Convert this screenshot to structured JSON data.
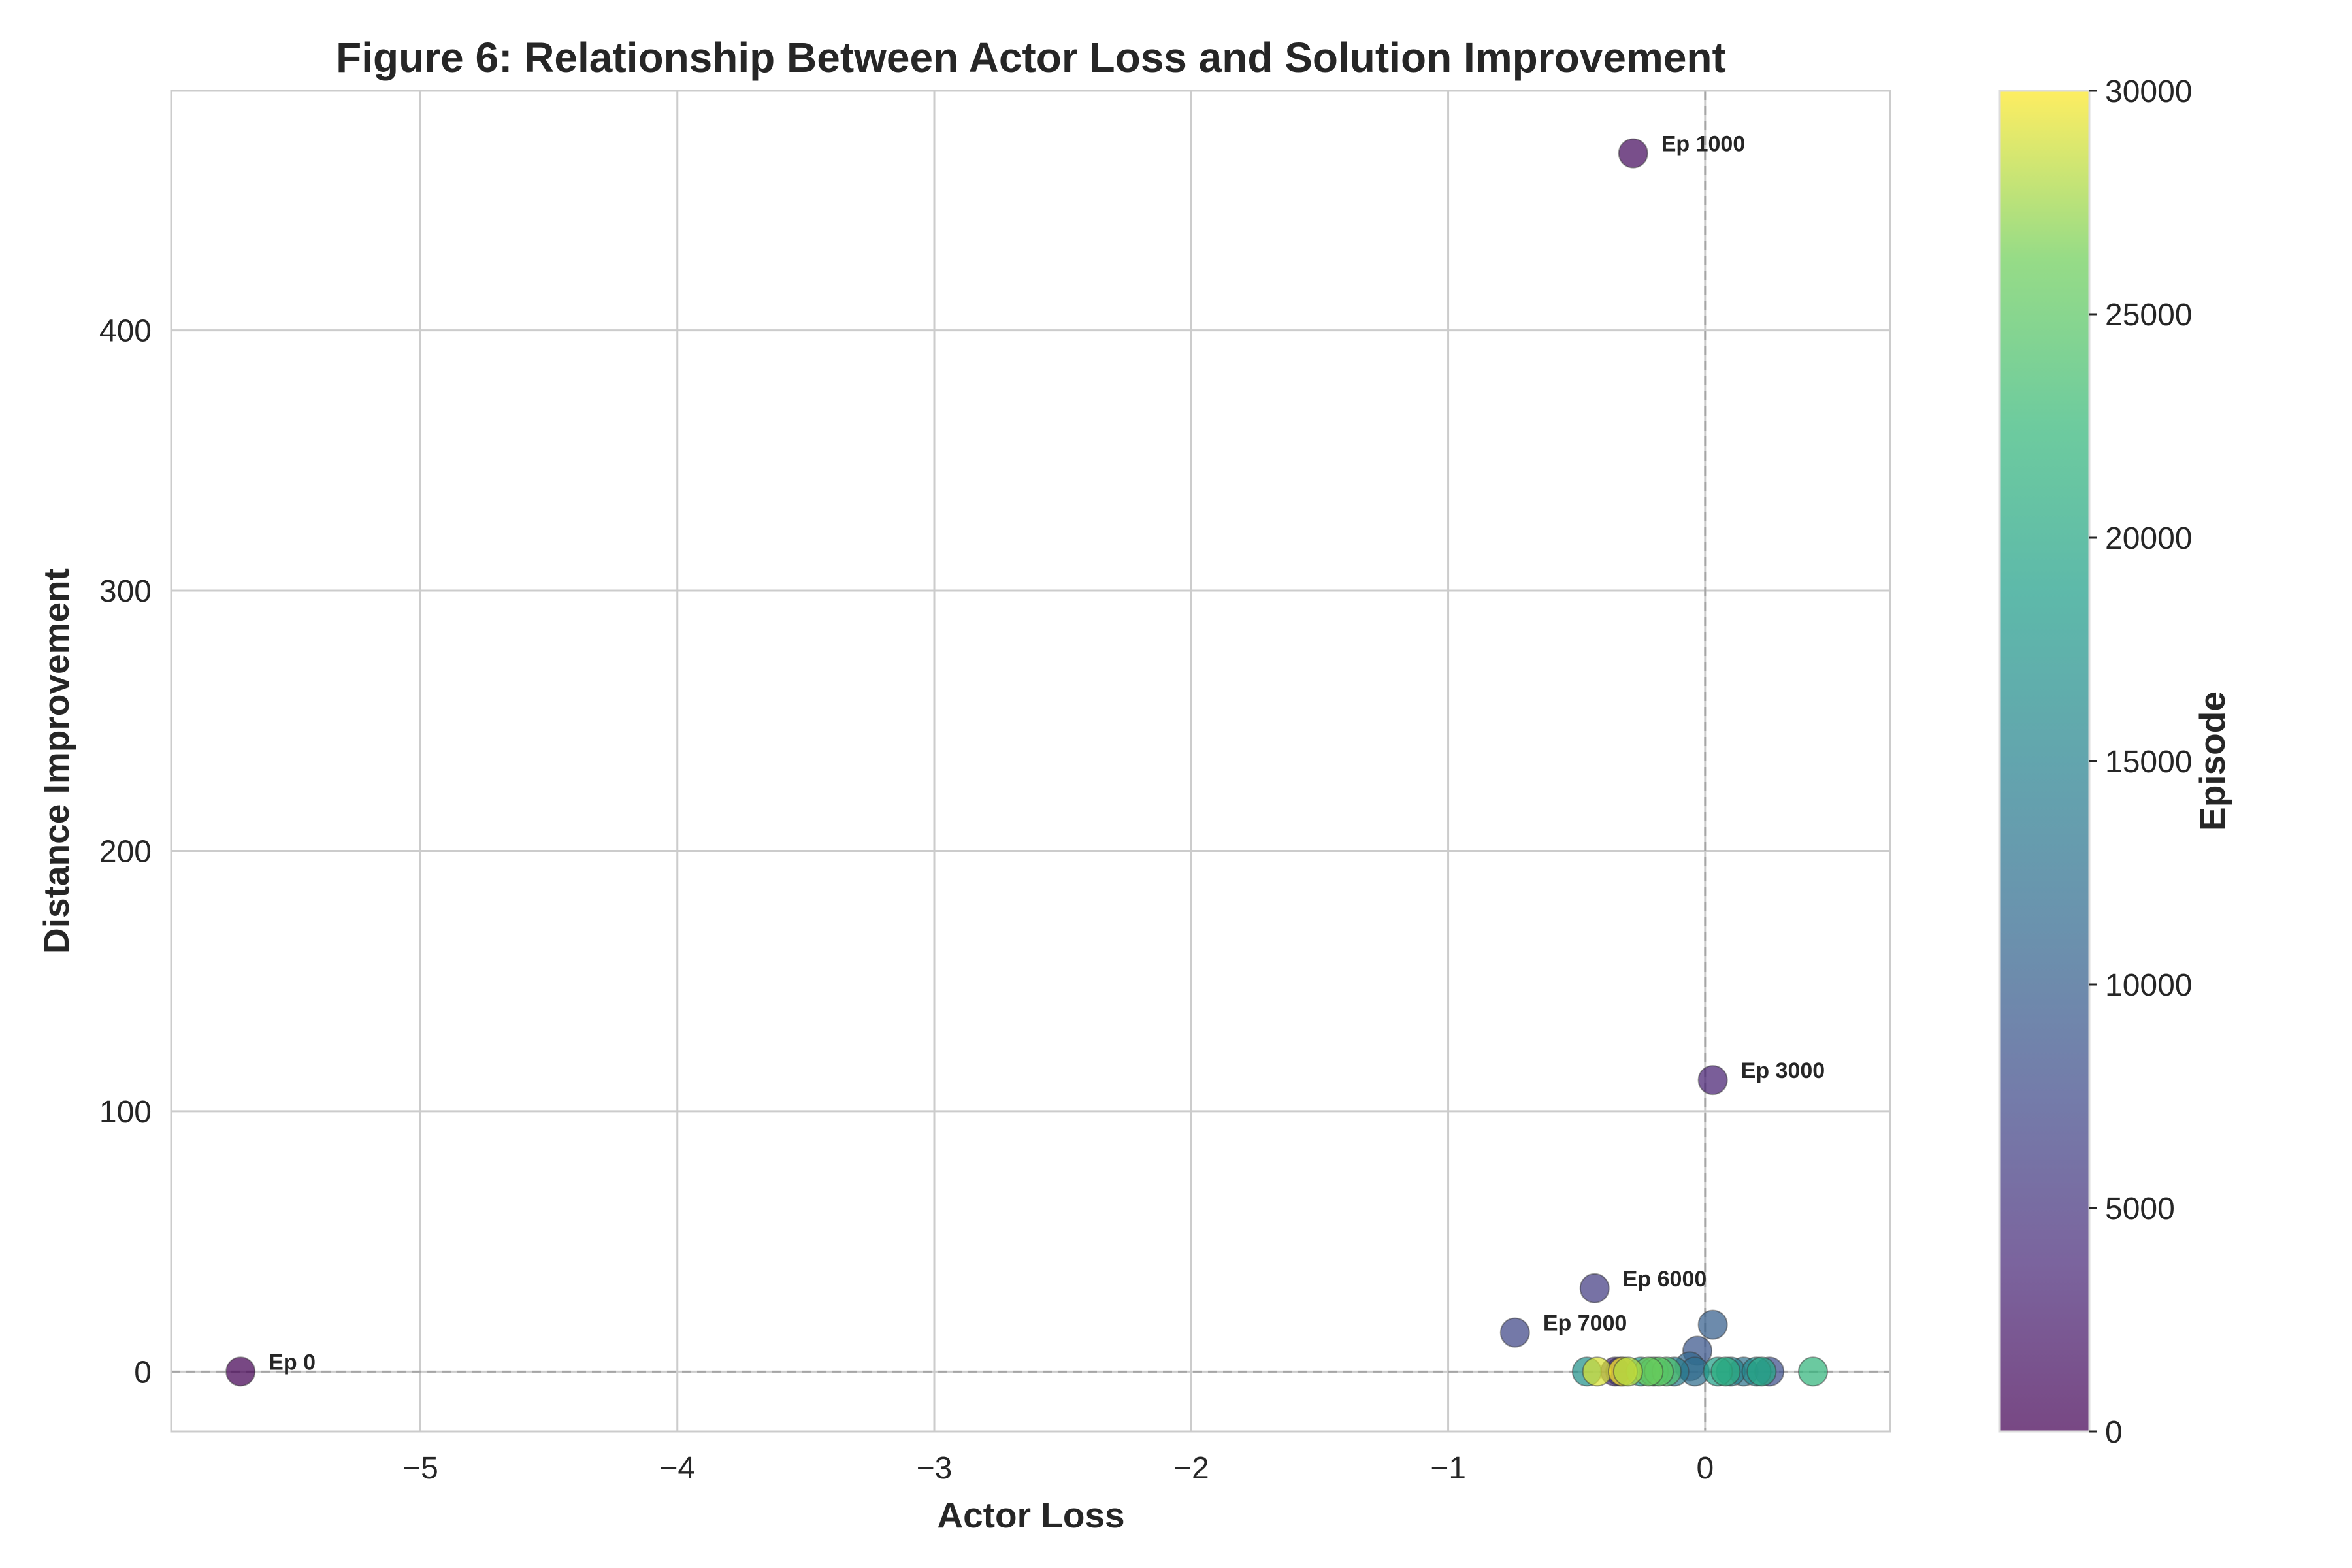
{
  "chart_data": {
    "type": "scatter",
    "title": "Figure 6: Relationship Between Actor Loss and Solution Improvement",
    "xlabel": "Actor Loss",
    "ylabel": "Distance Improvement",
    "xlim": [
      -5.97,
      0.72
    ],
    "ylim": [
      -23,
      492
    ],
    "xticks": [
      -5,
      -4,
      -3,
      -2,
      -1,
      0
    ],
    "xtick_labels": [
      "−5",
      "−4",
      "−3",
      "−2",
      "−1",
      "0"
    ],
    "yticks": [
      0,
      100,
      200,
      300,
      400
    ],
    "ytick_labels": [
      "0",
      "100",
      "200",
      "300",
      "400"
    ],
    "grid": true,
    "reference_lines": {
      "x": 0,
      "y": 0,
      "style": "dashed"
    },
    "colorbar": {
      "label": "Episode",
      "min": 0,
      "max": 30000,
      "ticks": [
        0,
        5000,
        10000,
        15000,
        20000,
        25000,
        30000
      ],
      "tick_labels": [
        "0",
        "5000",
        "10000",
        "15000",
        "20000",
        "25000",
        "30000"
      ],
      "colormap": "viridis"
    },
    "points": [
      {
        "x": -5.7,
        "y": 0,
        "episode": 0,
        "label": "Ep 0"
      },
      {
        "x": -0.28,
        "y": 468,
        "episode": 1000,
        "label": "Ep 1000"
      },
      {
        "x": 0.03,
        "y": 112,
        "episode": 3000,
        "label": "Ep 3000"
      },
      {
        "x": -0.43,
        "y": 32,
        "episode": 6000,
        "label": "Ep 6000"
      },
      {
        "x": -0.74,
        "y": 15,
        "episode": 7000,
        "label": "Ep 7000"
      },
      {
        "x": 0.03,
        "y": 18,
        "episode": 10000
      },
      {
        "x": -0.03,
        "y": 8,
        "episode": 9000
      },
      {
        "x": -0.06,
        "y": 2,
        "episode": 11000
      },
      {
        "x": -0.04,
        "y": 0,
        "episode": 12000
      },
      {
        "x": -0.35,
        "y": 0,
        "episode": 4000
      },
      {
        "x": -0.33,
        "y": 0,
        "episode": 5000
      },
      {
        "x": 0.15,
        "y": 0,
        "episode": 13000
      },
      {
        "x": 0.25,
        "y": 0,
        "episode": 8000
      },
      {
        "x": -0.12,
        "y": 0,
        "episode": 14000
      },
      {
        "x": 0.1,
        "y": 0,
        "episode": 15000
      },
      {
        "x": -0.46,
        "y": 0,
        "episode": 17000
      },
      {
        "x": -0.25,
        "y": 0,
        "episode": 18000
      },
      {
        "x": 0.2,
        "y": 0,
        "episode": 16000
      },
      {
        "x": 0.05,
        "y": 0,
        "episode": 19000
      },
      {
        "x": 0.42,
        "y": 0,
        "episode": 22000
      },
      {
        "x": 0.08,
        "y": 0,
        "episode": 21000
      },
      {
        "x": 0.22,
        "y": 0,
        "episode": 20000
      },
      {
        "x": -0.2,
        "y": 0,
        "episode": 23000
      },
      {
        "x": -0.15,
        "y": 0,
        "episode": 24000
      },
      {
        "x": -0.18,
        "y": 0,
        "episode": 25000
      },
      {
        "x": -0.22,
        "y": 0,
        "episode": 26000
      },
      {
        "x": -0.42,
        "y": 0,
        "episode": 29000
      },
      {
        "x": -0.32,
        "y": 0,
        "episode": 30000
      },
      {
        "x": -0.3,
        "y": 0,
        "episode": 28000
      }
    ]
  }
}
